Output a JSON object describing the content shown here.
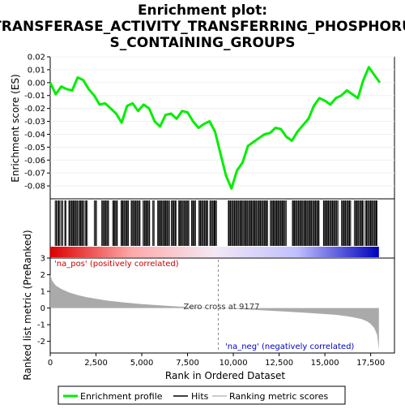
{
  "chart_data": {
    "type": "line",
    "title_line1": "Enrichment plot:",
    "title_line2": "TRANSFERASE_ACTIVITY_TRANSFERRING_PHOSPHORU",
    "title_line3": "S_CONTAINING_GROUPS",
    "es_panel": {
      "ylabel": "Enrichment score (ES)",
      "ylim": [
        -0.09,
        0.02
      ],
      "yticks": [
        "0.02",
        "0.01",
        "0.00",
        "-0.01",
        "-0.02",
        "-0.03",
        "-0.04",
        "-0.05",
        "-0.06",
        "-0.07",
        "-0.08"
      ],
      "ytick_values": [
        0.02,
        0.01,
        0.0,
        -0.01,
        -0.02,
        -0.03,
        -0.04,
        -0.05,
        -0.06,
        -0.07,
        -0.08
      ],
      "color": "#00ee00",
      "x": [
        0,
        300,
        600,
        900,
        1200,
        1500,
        1800,
        2100,
        2400,
        2700,
        3000,
        3300,
        3600,
        3900,
        4200,
        4500,
        4800,
        5100,
        5400,
        5700,
        6000,
        6300,
        6600,
        6900,
        7200,
        7500,
        7800,
        8100,
        8400,
        8700,
        9000,
        9300,
        9600,
        9900,
        10200,
        10500,
        10800,
        11100,
        11400,
        11700,
        12000,
        12300,
        12600,
        12900,
        13200,
        13500,
        13800,
        14100,
        14400,
        14700,
        15000,
        15300,
        15600,
        15900,
        16200,
        16500,
        16800,
        17100,
        17400,
        17700,
        18000
      ],
      "y": [
        0.0,
        -0.009,
        -0.003,
        -0.005,
        -0.006,
        0.004,
        0.002,
        -0.005,
        -0.01,
        -0.017,
        -0.016,
        -0.02,
        -0.024,
        -0.031,
        -0.018,
        -0.016,
        -0.022,
        -0.017,
        -0.02,
        -0.03,
        -0.034,
        -0.025,
        -0.024,
        -0.028,
        -0.022,
        -0.023,
        -0.03,
        -0.035,
        -0.032,
        -0.03,
        -0.038,
        -0.055,
        -0.072,
        -0.082,
        -0.068,
        -0.062,
        -0.049,
        -0.046,
        -0.043,
        -0.04,
        -0.039,
        -0.035,
        -0.036,
        -0.042,
        -0.045,
        -0.038,
        -0.033,
        -0.028,
        -0.018,
        -0.012,
        -0.014,
        -0.017,
        -0.012,
        -0.01,
        -0.006,
        -0.009,
        -0.012,
        0.002,
        0.012,
        0.006,
        0.0
      ]
    },
    "hits_panel": {
      "hit_ranges": [
        [
          260,
          340
        ],
        [
          400,
          520
        ],
        [
          600,
          700
        ],
        [
          780,
          860
        ],
        [
          1000,
          1500
        ],
        [
          1550,
          1820
        ],
        [
          1900,
          2050
        ],
        [
          2400,
          2550
        ],
        [
          2800,
          3200
        ],
        [
          3400,
          3700
        ],
        [
          3850,
          4300
        ],
        [
          4400,
          4900
        ],
        [
          5050,
          5450
        ],
        [
          5600,
          5700
        ],
        [
          5850,
          6500
        ],
        [
          6600,
          6900
        ],
        [
          7000,
          7600
        ],
        [
          7700,
          7950
        ],
        [
          8100,
          8600
        ],
        [
          8700,
          9100
        ],
        [
          9700,
          11900
        ],
        [
          12000,
          12900
        ],
        [
          13200,
          14700
        ],
        [
          14900,
          15700
        ],
        [
          15900,
          16400
        ],
        [
          16600,
          17100
        ],
        [
          17200,
          17850
        ]
      ],
      "gradient_stops": [
        "#dd0000",
        "#ffaaaa",
        "#f4e8f4",
        "#c0c0ff",
        "#0000bb"
      ]
    },
    "metric_panel": {
      "ylabel": "Ranked list metric (PreRanked)",
      "ylim": [
        -2.7,
        3.0
      ],
      "yticks": [
        "3",
        "2",
        "1",
        "0",
        "-1",
        "-2"
      ],
      "ytick_values": [
        3,
        2,
        1,
        0,
        -1,
        -2
      ],
      "fill_color": "#aaaaaa",
      "x": [
        0,
        100,
        300,
        600,
        1000,
        1500,
        2000,
        3000,
        4000,
        5000,
        6000,
        7000,
        8000,
        9177,
        10000,
        11000,
        12000,
        13000,
        14000,
        15000,
        15500,
        16000,
        16500,
        17000,
        17300,
        17500,
        17700,
        17850,
        17950
      ],
      "y": [
        2.0,
        1.65,
        1.35,
        1.15,
        0.95,
        0.78,
        0.65,
        0.46,
        0.34,
        0.24,
        0.16,
        0.09,
        0.04,
        0.0,
        -0.04,
        -0.1,
        -0.16,
        -0.22,
        -0.29,
        -0.36,
        -0.4,
        -0.46,
        -0.54,
        -0.66,
        -0.8,
        -0.95,
        -1.2,
        -1.6,
        -2.5
      ],
      "pos_label": "'na_pos' (positively correlated)",
      "neg_label": "'na_neg' (negatively correlated)",
      "zero_cross_label": "Zero cross at 9177",
      "zero_cross": 9177
    },
    "xaxis": {
      "label": "Rank in Ordered Dataset",
      "xlim": [
        0,
        18800
      ],
      "ticks": [
        "0",
        "2,500",
        "5,000",
        "7,500",
        "10,000",
        "12,500",
        "15,000",
        "17,500"
      ],
      "tick_values": [
        0,
        2500,
        5000,
        7500,
        10000,
        12500,
        15000,
        17500
      ]
    },
    "legend": {
      "items": [
        "Enrichment profile",
        "Hits",
        "Ranking metric scores"
      ],
      "colors": [
        "#00ee00",
        "#000000",
        "#cccccc"
      ]
    }
  }
}
